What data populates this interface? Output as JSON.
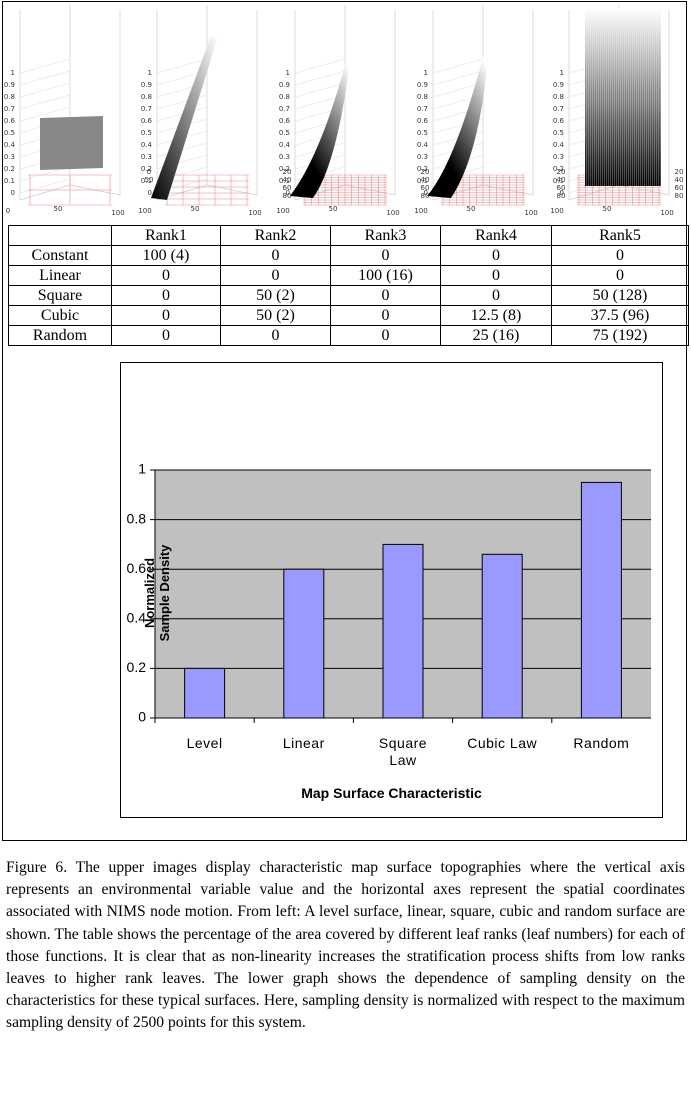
{
  "surfaces": {
    "zticks": [
      0,
      0.1,
      0.2,
      0.3,
      0.4,
      0.5,
      0.6,
      0.7,
      0.8,
      0.9,
      1
    ],
    "panels": [
      {
        "bottom_labels": [
          "0",
          "50",
          "100"
        ],
        "depth_labels": []
      },
      {
        "bottom_labels": [
          "100",
          "50",
          "100"
        ],
        "depth_labels": [
          "0",
          "50"
        ]
      },
      {
        "bottom_labels": [
          "100",
          "50",
          "100"
        ],
        "depth_labels": [
          "20",
          "40",
          "60",
          "80"
        ]
      },
      {
        "bottom_labels": [
          "100",
          "50",
          "100"
        ],
        "depth_labels": [
          "20",
          "40",
          "60",
          "80"
        ]
      },
      {
        "bottom_labels": [
          "100",
          "50",
          "100"
        ],
        "depth_labels": [
          "20",
          "40",
          "60",
          "80"
        ],
        "right_labels": [
          "20",
          "40",
          "60",
          "80"
        ]
      }
    ]
  },
  "table": {
    "header": [
      "Rank1",
      "Rank2",
      "Rank3",
      "Rank4",
      "Rank5"
    ],
    "rows": [
      {
        "label": "Constant",
        "cells": [
          "100 (4)",
          "0",
          "0",
          "0",
          "0"
        ]
      },
      {
        "label": "Linear",
        "cells": [
          "0",
          "0",
          "100 (16)",
          "0",
          "0"
        ]
      },
      {
        "label": "Square",
        "cells": [
          "0",
          "50 (2)",
          "0",
          "0",
          "50 (128)"
        ]
      },
      {
        "label": "Cubic",
        "cells": [
          "0",
          "50 (2)",
          "0",
          "12.5 (8)",
          "37.5 (96)"
        ]
      },
      {
        "label": "Random",
        "cells": [
          "0",
          "0",
          "0",
          "25 (16)",
          "75 (192)"
        ]
      }
    ]
  },
  "chart_data": {
    "type": "bar",
    "x_label": "Map Surface Characteristic",
    "y_label": "Normalized Sample Density",
    "categories": [
      "Level",
      "Linear",
      "Square Law",
      "Cubic Law",
      "Random"
    ],
    "values": [
      0.2,
      0.6,
      0.7,
      0.66,
      0.95
    ],
    "color": "#9999ff",
    "ylim": [
      0,
      1
    ],
    "yticks": [
      0,
      0.2,
      0.4,
      0.6,
      0.8,
      1
    ],
    "grid": true
  },
  "caption": "Figure 6. The upper images display characteristic map surface topographies where the vertical axis represents an environmental variable value and the horizontal axes represent the spatial coordinates associated with NIMS node motion. From left: A level surface, linear, square, cubic and random surface are shown. The table shows the percentage of the area covered by different leaf ranks (leaf numbers) for each of those functions. It is clear that as non-linearity increases the stratification process shifts from low ranks leaves to higher rank leaves. The lower graph shows the dependence of sampling density on the characteristics for these typical surfaces. Here, sampling density is normalized with respect to the maximum sampling density of 2500 points for this system."
}
